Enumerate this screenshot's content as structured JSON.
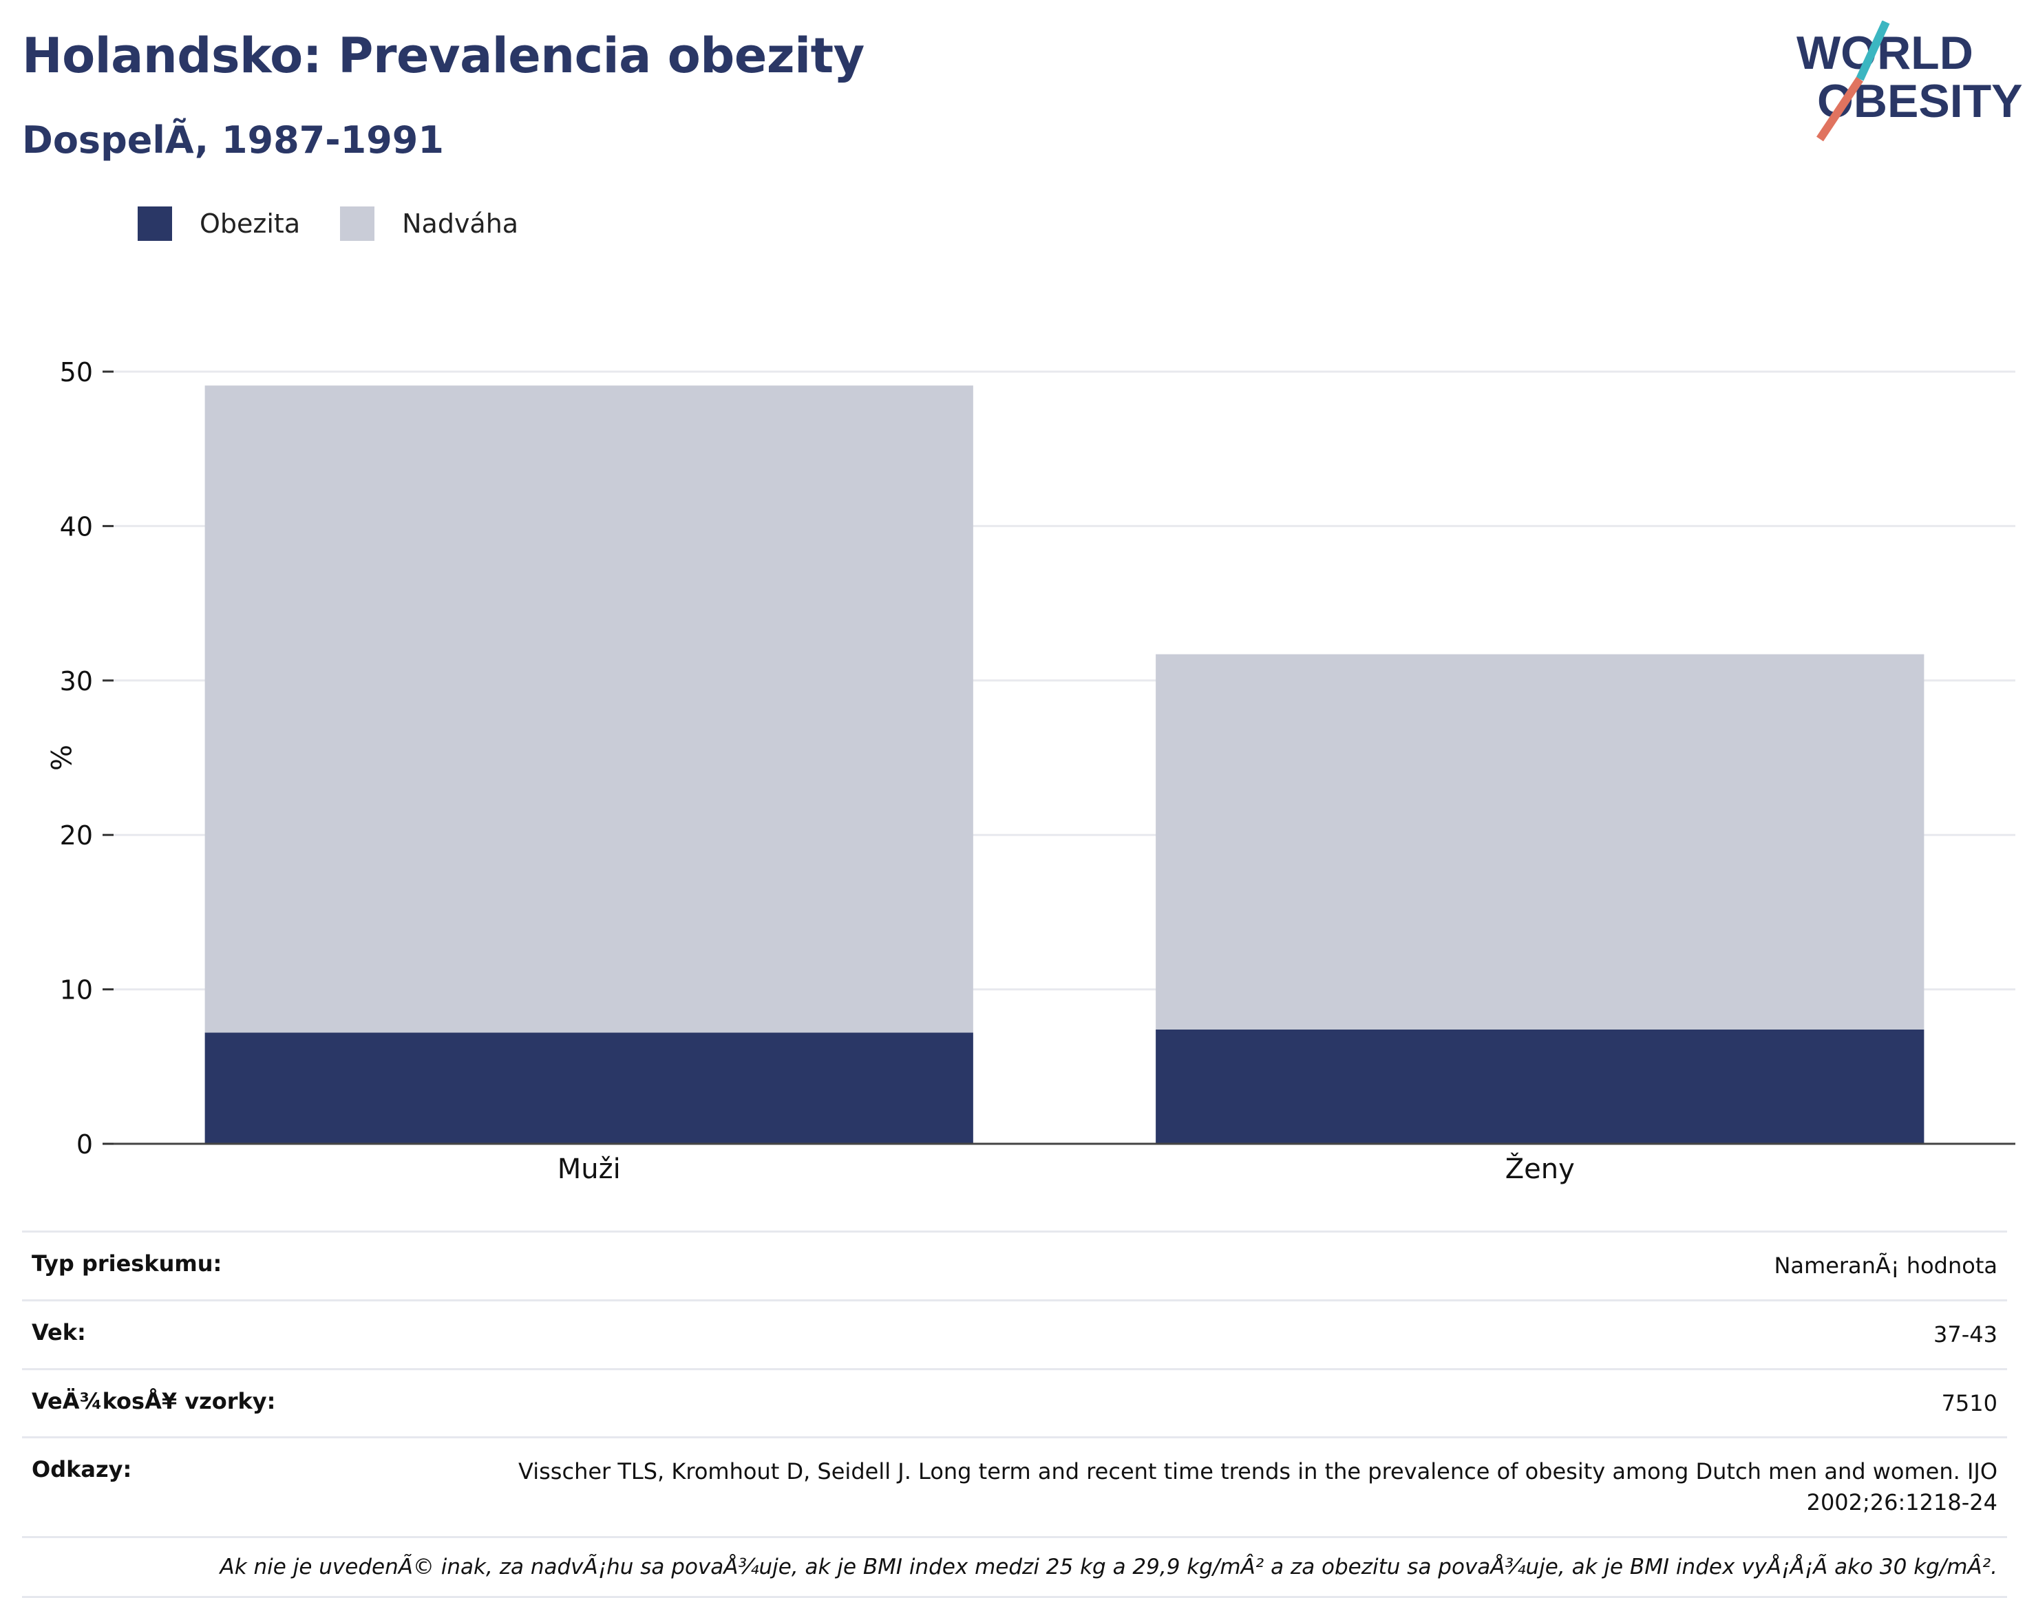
{
  "title": "Holandsko: Prevalencia obezity",
  "subtitle": "DospelÃ, 1987-1991",
  "logo": {
    "line1": "WORLD",
    "line2": "OBESITY",
    "colors": {
      "text": "#2a3766",
      "slash_top": "#3bb6c1",
      "slash_bottom": "#e0735f"
    }
  },
  "legend": [
    {
      "label": "Obezita",
      "color": "#2a3766"
    },
    {
      "label": "Nadváha",
      "color": "#c9ccd7"
    }
  ],
  "chart_data": {
    "type": "bar",
    "stacked": true,
    "categories": [
      "Muži",
      "Ženy"
    ],
    "series": [
      {
        "name": "Obezita",
        "values": [
          7.2,
          7.4
        ],
        "color": "#2a3766"
      },
      {
        "name": "Nadváha",
        "values": [
          41.9,
          24.3
        ],
        "color": "#c9ccd7"
      }
    ],
    "ylabel": "%",
    "ylim": [
      0,
      50
    ],
    "yticks": [
      0,
      10,
      20,
      30,
      40,
      50
    ],
    "grid": true
  },
  "info": [
    {
      "key": "Typ prieskumu:",
      "value": "NameranÃ¡ hodnota"
    },
    {
      "key": "Vek:",
      "value": "37-43"
    },
    {
      "key": "VeÄ¾kosÅ¥ vzorky:",
      "value": "7510"
    },
    {
      "key": "Odkazy:",
      "value": "Visscher TLS, Kromhout D, Seidell J. Long term and recent time trends in the prevalence of obesity among Dutch men and women. IJO 2002;26:1218-24"
    }
  ],
  "note": "Ak nie je uvedenÃ© inak, za nadvÃ¡hu sa povaÅ¾uje, ak je BMI index medzi 25 kg a 29,9 kg/mÂ² a za obezitu sa povaÅ¾uje, ak je BMI index vyÅ¡Å¡Ã ako 30 kg/mÂ²."
}
